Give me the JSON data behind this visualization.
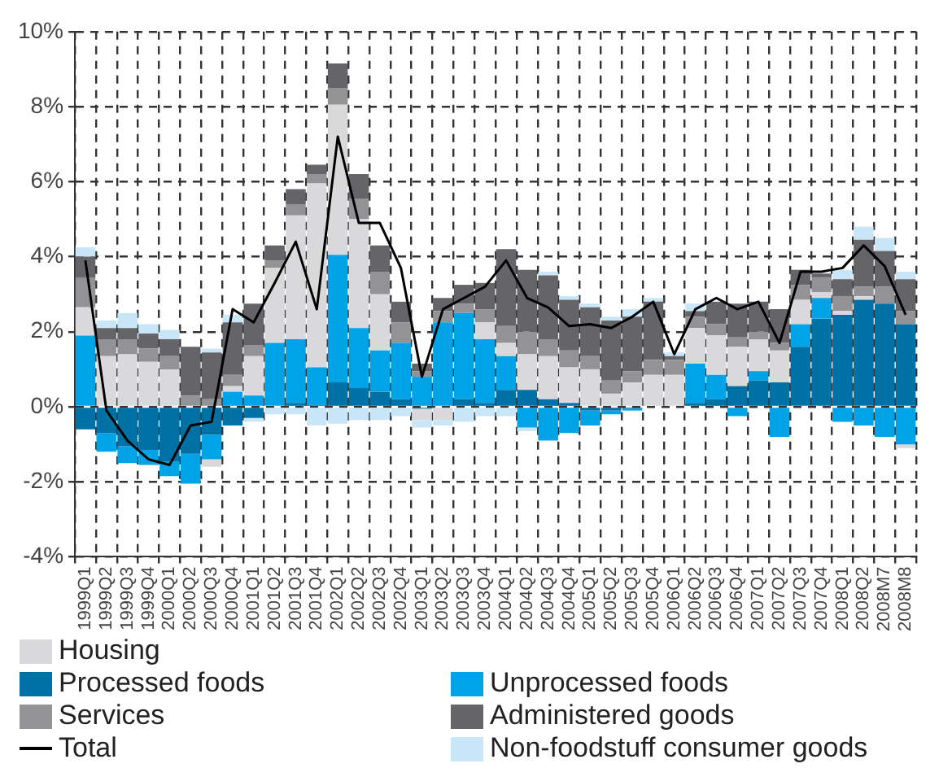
{
  "chart_data": {
    "type": "bar",
    "stacked": true,
    "legend": "bottom",
    "grid": true,
    "categories": [
      "1999Q1",
      "1999Q2",
      "1999Q3",
      "1999Q4",
      "2000Q1",
      "2000Q2",
      "2000Q3",
      "2000Q4",
      "2001Q1",
      "2001Q2",
      "2001Q3",
      "2001Q4",
      "2002Q1",
      "2002Q2",
      "2002Q3",
      "2002Q4",
      "2003Q1",
      "2003Q2",
      "2003Q3",
      "2003Q4",
      "2004Q1",
      "2004Q2",
      "2004Q3",
      "2004Q4",
      "2005Q1",
      "2005Q2",
      "2005Q3",
      "2005Q4",
      "2006Q1",
      "2006Q2",
      "2006Q3",
      "2006Q4",
      "2007Q1",
      "2007Q2",
      "2007Q3",
      "2007Q4",
      "2008Q1",
      "2008Q2",
      "2008M7",
      "2008M8"
    ],
    "ylim": [
      -4,
      10
    ],
    "yticks": [
      {
        "value": -4,
        "label": "-4%"
      },
      {
        "value": -2,
        "label": "-2%"
      },
      {
        "value": 0,
        "label": "0%"
      },
      {
        "value": 2,
        "label": "2%"
      },
      {
        "value": 4,
        "label": "4%"
      },
      {
        "value": 6,
        "label": "6%"
      },
      {
        "value": 8,
        "label": "8%"
      },
      {
        "value": 10,
        "label": "10%"
      }
    ],
    "series": [
      {
        "name": "Processed foods",
        "color": "#0071a4",
        "values": [
          -0.6,
          -0.7,
          -1.05,
          -1.15,
          -1.45,
          -1.25,
          -0.75,
          -0.5,
          -0.3,
          0,
          0.1,
          0.05,
          0.65,
          0.5,
          0.4,
          0.2,
          -0.05,
          0,
          0.2,
          0.1,
          0.45,
          0.45,
          0.2,
          0.1,
          -0.1,
          -0.1,
          -0.05,
          0,
          0,
          0.1,
          0.2,
          0.55,
          0.7,
          0.65,
          1.6,
          2.35,
          2.45,
          2.85,
          2.75,
          2.2
        ]
      },
      {
        "name": "Unprocessed foods",
        "color": "#00a3e6",
        "values": [
          1.9,
          -0.5,
          -0.45,
          -0.4,
          -0.4,
          -0.8,
          -0.65,
          0.4,
          0.3,
          1.7,
          1.7,
          1.0,
          3.4,
          1.6,
          1.1,
          1.5,
          0.8,
          2.25,
          2.3,
          1.7,
          0.9,
          -0.55,
          -0.9,
          -0.7,
          -0.4,
          -0.1,
          -0.05,
          0,
          0,
          1.05,
          0.65,
          -0.25,
          0.25,
          -0.8,
          0.6,
          0.55,
          -0.4,
          -0.5,
          -0.8,
          -1.0
        ]
      },
      {
        "name": "Housing",
        "color": "#d9d9db",
        "values": [
          0.75,
          1.35,
          1.4,
          1.2,
          1.0,
          0,
          -0.2,
          0.15,
          1.05,
          2.0,
          3.3,
          4.9,
          4.0,
          2.9,
          1.5,
          0,
          -0.3,
          -0.35,
          0,
          0.45,
          0.35,
          0.95,
          1.15,
          0.95,
          1.0,
          0.35,
          0.65,
          0.85,
          0.85,
          0.95,
          1.05,
          1.05,
          0.85,
          0.85,
          0.65,
          0.15,
          0.1,
          0.1,
          0,
          -0.1
        ]
      },
      {
        "name": "Services",
        "color": "#939396",
        "values": [
          0.8,
          0.45,
          0.4,
          0.35,
          0.35,
          0.3,
          0.2,
          0.3,
          0.3,
          0.2,
          0.3,
          0.25,
          0.45,
          0.55,
          0.6,
          0.55,
          0.15,
          0.3,
          0.25,
          0.35,
          0.45,
          0.6,
          0.45,
          0.45,
          0.35,
          0.35,
          0.3,
          0.4,
          0.4,
          0.3,
          0.3,
          0.25,
          0.2,
          0.2,
          0.4,
          0.4,
          0.4,
          0.25,
          0.45,
          0.35
        ]
      },
      {
        "name": "Administered goods",
        "color": "#646469",
        "values": [
          0.55,
          0.3,
          0.3,
          0.4,
          0.45,
          1.3,
          1.25,
          1.4,
          1.1,
          0.4,
          0.4,
          0.25,
          0.65,
          0.65,
          0.7,
          0.55,
          0.2,
          0.35,
          0.5,
          0.7,
          2.05,
          1.65,
          1.7,
          1.35,
          1.3,
          1.6,
          1.45,
          1.55,
          0.1,
          0.15,
          0.6,
          0.9,
          0.8,
          0.9,
          0.4,
          0.1,
          0.45,
          1.25,
          0.95,
          0.85
        ]
      },
      {
        "name": "Non-foodstuff consumer goods",
        "color": "#c8e6f7",
        "values": [
          0.25,
          0.2,
          0.4,
          0.25,
          0.25,
          0,
          0.1,
          0.2,
          -0.1,
          -0.2,
          -0.2,
          -0.5,
          -0.45,
          -0.35,
          -0.35,
          -0.25,
          -0.2,
          -0.15,
          -0.4,
          -0.25,
          -0.25,
          -0.1,
          0.1,
          0.1,
          0.1,
          0.1,
          0.2,
          0.1,
          0.1,
          0.2,
          0,
          0,
          0,
          0,
          0,
          null,
          0.25,
          0.35,
          0.35,
          0.2
        ]
      },
      {
        "name": "Total",
        "type": "line",
        "color": "#000000",
        "values": [
          3.9,
          -0.1,
          -0.9,
          -1.4,
          -1.55,
          -0.5,
          -0.4,
          2.6,
          2.25,
          3.3,
          4.4,
          2.6,
          7.2,
          4.9,
          4.9,
          3.7,
          0.8,
          2.6,
          2.9,
          3.2,
          3.9,
          2.9,
          2.65,
          2.15,
          2.2,
          2.1,
          2.4,
          2.8,
          1.4,
          2.6,
          2.9,
          2.6,
          2.8,
          1.7,
          3.6,
          3.6,
          3.7,
          4.3,
          3.75,
          2.45
        ]
      }
    ]
  }
}
